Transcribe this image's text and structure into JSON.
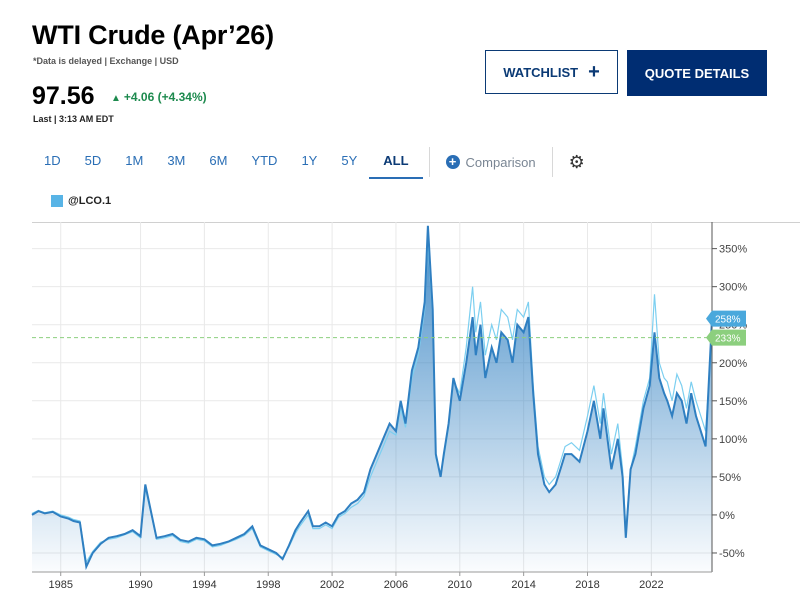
{
  "header": {
    "title": "WTI Crude (Apr’26)",
    "subnote": "*Data is delayed | Exchange | USD",
    "price": "97.56",
    "change": "+4.06 (+4.34%)",
    "last_time": "Last | 3:13 AM EDT"
  },
  "buttons": {
    "watchlist": "WATCHLIST",
    "quote_details": "QUOTE DETAILS"
  },
  "tabs": [
    "1D",
    "5D",
    "1M",
    "3M",
    "6M",
    "YTD",
    "1Y",
    "5Y",
    "ALL"
  ],
  "active_tab": "ALL",
  "comparison_label": "Comparison",
  "legend": {
    "symbol": "@LCO.1"
  },
  "colors": {
    "main": "#2f7fc1",
    "comparison": "#7ccff0",
    "up": "#1d8a4e",
    "nav": "#002d72",
    "dash": "#8ccf7e"
  },
  "icons": {
    "watch": "plus-icon",
    "comparison": "plus-circle-icon",
    "settings": "gear-icon",
    "change": "triangle-up-icon"
  },
  "chart_data": {
    "type": "area",
    "y_unit": "%",
    "ylim": [
      -75,
      385
    ],
    "xlim": [
      1983.2,
      2025.8
    ],
    "y_ticks": [
      -50,
      0,
      50,
      100,
      150,
      200,
      250,
      300,
      350
    ],
    "y_tick_labels": [
      "-50%",
      "0%",
      "50%",
      "100%",
      "150%",
      "200%",
      "250%",
      "300%",
      "350%"
    ],
    "x_ticks": [
      1985,
      1990,
      1994,
      1998,
      2002,
      2006,
      2010,
      2014,
      2018,
      2022
    ],
    "x_tick_labels": [
      "1985",
      "1990",
      "1994",
      "1998",
      "2002",
      "2006",
      "2010",
      "2014",
      "2018",
      "2022"
    ],
    "reference_line": 233,
    "last_value_labels": {
      "main": "258%",
      "comparison": "233%"
    },
    "series": [
      {
        "role": "main",
        "x": [
          1983.2,
          1983.6,
          1984.0,
          1984.5,
          1985.0,
          1985.5,
          1985.8,
          1986.2,
          1986.6,
          1987.0,
          1987.5,
          1988.0,
          1988.5,
          1989.0,
          1989.5,
          1990.0,
          1990.3,
          1990.7,
          1991.0,
          1991.5,
          1992.0,
          1992.5,
          1993.0,
          1993.5,
          1994.0,
          1994.5,
          1995.0,
          1995.5,
          1996.0,
          1996.5,
          1997.0,
          1997.5,
          1998.0,
          1998.5,
          1998.9,
          1999.3,
          1999.7,
          2000.0,
          2000.5,
          2000.8,
          2001.2,
          2001.6,
          2002.0,
          2002.4,
          2002.8,
          2003.2,
          2003.6,
          2004.0,
          2004.4,
          2004.8,
          2005.2,
          2005.6,
          2006.0,
          2006.3,
          2006.6,
          2007.0,
          2007.4,
          2007.8,
          2008.0,
          2008.3,
          2008.5,
          2008.8,
          2009.0,
          2009.3,
          2009.6,
          2010.0,
          2010.4,
          2010.8,
          2011.0,
          2011.3,
          2011.6,
          2012.0,
          2012.3,
          2012.6,
          2013.0,
          2013.3,
          2013.6,
          2014.0,
          2014.3,
          2014.6,
          2014.9,
          2015.3,
          2015.6,
          2016.0,
          2016.3,
          2016.6,
          2017.0,
          2017.5,
          2018.0,
          2018.4,
          2018.8,
          2019.0,
          2019.5,
          2019.9,
          2020.2,
          2020.4,
          2020.7,
          2021.0,
          2021.5,
          2021.9,
          2022.2,
          2022.5,
          2022.8,
          2023.0,
          2023.3,
          2023.6,
          2023.9,
          2024.2,
          2024.5,
          2024.8,
          2025.1,
          2025.4,
          2025.8
        ],
        "values": [
          0,
          5,
          2,
          4,
          -2,
          -5,
          -8,
          -10,
          -68,
          -50,
          -38,
          -30,
          -28,
          -25,
          -20,
          -28,
          40,
          0,
          -30,
          -28,
          -25,
          -33,
          -35,
          -30,
          -32,
          -40,
          -38,
          -35,
          -30,
          -25,
          -15,
          -40,
          -45,
          -50,
          -58,
          -40,
          -20,
          -10,
          5,
          -15,
          -15,
          -10,
          -15,
          0,
          5,
          15,
          20,
          30,
          60,
          80,
          100,
          120,
          110,
          150,
          120,
          190,
          220,
          280,
          380,
          270,
          80,
          50,
          80,
          120,
          180,
          150,
          200,
          260,
          210,
          250,
          180,
          220,
          200,
          240,
          230,
          200,
          250,
          240,
          260,
          160,
          80,
          40,
          30,
          40,
          60,
          80,
          80,
          70,
          110,
          150,
          100,
          140,
          60,
          100,
          50,
          -30,
          60,
          80,
          140,
          170,
          240,
          180,
          160,
          150,
          130,
          160,
          150,
          120,
          160,
          130,
          110,
          90,
          258
        ]
      },
      {
        "role": "comparison",
        "x": [
          1983.2,
          1983.6,
          1984.0,
          1984.5,
          1985.0,
          1985.5,
          1985.8,
          1986.2,
          1986.6,
          1987.0,
          1987.5,
          1988.0,
          1988.5,
          1989.0,
          1989.5,
          1990.0,
          1990.3,
          1990.7,
          1991.0,
          1991.5,
          1992.0,
          1992.5,
          1993.0,
          1993.5,
          1994.0,
          1994.5,
          1995.0,
          1995.5,
          1996.0,
          1996.5,
          1997.0,
          1997.5,
          1998.0,
          1998.5,
          1998.9,
          1999.3,
          1999.7,
          2000.0,
          2000.5,
          2000.8,
          2001.2,
          2001.6,
          2002.0,
          2002.4,
          2002.8,
          2003.2,
          2003.6,
          2004.0,
          2004.4,
          2004.8,
          2005.2,
          2005.6,
          2006.0,
          2006.3,
          2006.6,
          2007.0,
          2007.4,
          2007.8,
          2008.0,
          2008.3,
          2008.5,
          2008.8,
          2009.0,
          2009.3,
          2009.6,
          2010.0,
          2010.4,
          2010.8,
          2011.0,
          2011.3,
          2011.6,
          2012.0,
          2012.3,
          2012.6,
          2013.0,
          2013.3,
          2013.6,
          2014.0,
          2014.3,
          2014.6,
          2014.9,
          2015.3,
          2015.6,
          2016.0,
          2016.3,
          2016.6,
          2017.0,
          2017.5,
          2018.0,
          2018.4,
          2018.8,
          2019.0,
          2019.5,
          2019.9,
          2020.2,
          2020.4,
          2020.7,
          2021.0,
          2021.5,
          2021.9,
          2022.2,
          2022.5,
          2022.8,
          2023.0,
          2023.3,
          2023.6,
          2023.9,
          2024.2,
          2024.5,
          2024.8,
          2025.1,
          2025.4,
          2025.8
        ],
        "values": [
          2,
          6,
          3,
          5,
          0,
          -3,
          -6,
          -8,
          -62,
          -48,
          -36,
          -32,
          -30,
          -26,
          -22,
          -30,
          35,
          -2,
          -32,
          -30,
          -27,
          -35,
          -37,
          -32,
          -34,
          -42,
          -40,
          -36,
          -32,
          -27,
          -18,
          -42,
          -47,
          -52,
          -56,
          -42,
          -24,
          -14,
          0,
          -18,
          -18,
          -13,
          -18,
          -3,
          2,
          10,
          15,
          25,
          50,
          70,
          90,
          110,
          105,
          140,
          115,
          180,
          210,
          270,
          360,
          260,
          75,
          55,
          75,
          115,
          175,
          160,
          220,
          300,
          240,
          280,
          210,
          250,
          230,
          270,
          260,
          230,
          270,
          260,
          280,
          170,
          90,
          50,
          40,
          50,
          70,
          90,
          95,
          85,
          130,
          170,
          120,
          160,
          80,
          120,
          60,
          -20,
          60,
          90,
          150,
          180,
          290,
          200,
          180,
          175,
          150,
          185,
          170,
          140,
          175,
          150,
          130,
          110,
          233
        ]
      }
    ]
  }
}
